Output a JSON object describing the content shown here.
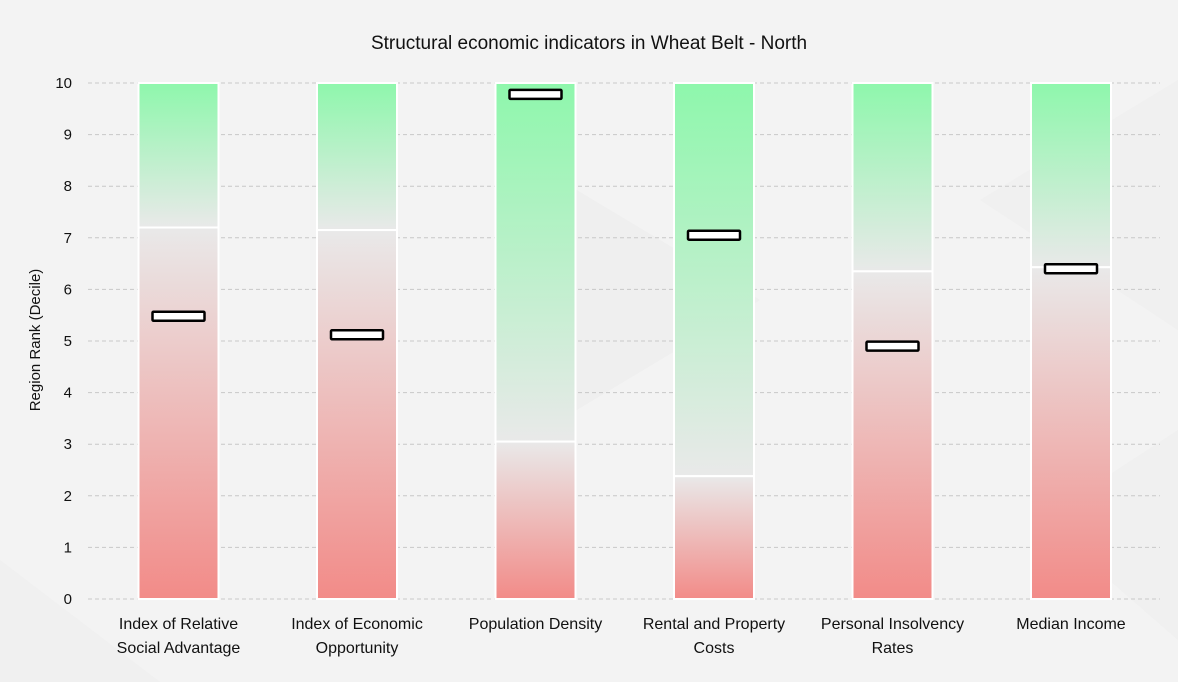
{
  "chart_data": {
    "type": "bar",
    "title": "Structural economic indicators in Wheat Belt - North",
    "ylabel": "Region Rank (Decile)",
    "xlabel": "",
    "ylim": [
      0,
      10
    ],
    "yticks": [
      0,
      1,
      2,
      3,
      4,
      5,
      6,
      7,
      8,
      9,
      10
    ],
    "grid": true,
    "categories": [
      [
        "Index of Relative",
        "Social Advantage"
      ],
      [
        "Index of Economic",
        "Opportunity"
      ],
      [
        "Population Density"
      ],
      [
        "Rental and Property",
        "Costs"
      ],
      [
        "Personal Insolvency",
        "Rates"
      ],
      [
        "Median Income"
      ]
    ],
    "split_values": [
      7.2,
      7.15,
      3.05,
      2.38,
      6.35,
      6.43
    ],
    "marker_values": [
      5.48,
      5.12,
      9.78,
      7.05,
      4.9,
      6.4
    ],
    "colors": {
      "high": "#8ef7ac",
      "low": "#f28b88",
      "neutral": "#e9e9e9",
      "marker_border": "#000000",
      "marker_fill": "#ffffff",
      "grid": "#c8c8c8",
      "text": "#111111"
    }
  }
}
